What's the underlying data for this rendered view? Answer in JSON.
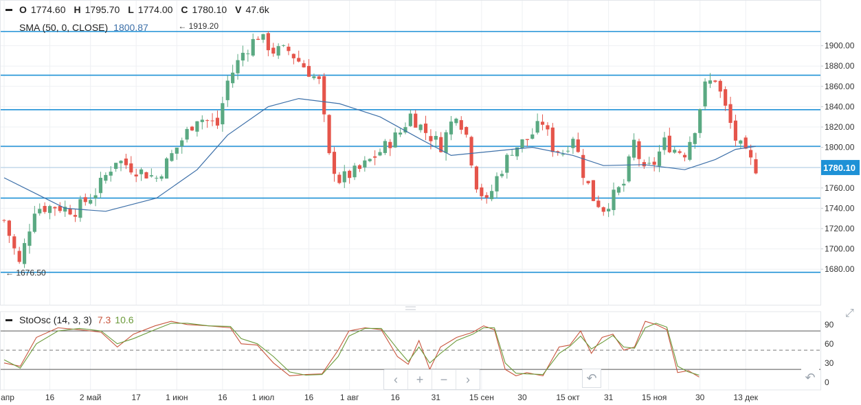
{
  "header": {
    "open_label": "O",
    "open": "1774.60",
    "high_label": "H",
    "high": "1795.70",
    "low_label": "L",
    "low": "1774.00",
    "close_label": "C",
    "close": "1780.10",
    "volume_label": "V",
    "volume": "47.6k"
  },
  "sma": {
    "label": "SMA (50, 0, CLOSE)",
    "value": "1800.87",
    "color": "#3c6fa8"
  },
  "stoch": {
    "label": "StoOsc (14, 3, 3)",
    "k_value": "7.3",
    "d_value": "10.6",
    "k_color": "#c8553d",
    "d_color": "#6b9a3a"
  },
  "colors": {
    "up": "#5aa982",
    "down": "#e5554b",
    "hline": "#1e91d6",
    "price_tag": "#1e91d6"
  },
  "nav": {
    "back": "‹",
    "zoom_in": "+",
    "zoom_out": "−",
    "forward": "›",
    "reset": "↶"
  },
  "icons": {
    "expand": "expand-icon",
    "reset": "undo-icon"
  },
  "chart_data": [
    {
      "type": "candlestick",
      "title": "",
      "y_ticks": [
        "1680.00",
        "1700.00",
        "1720.00",
        "1740.00",
        "1760.00",
        "1780.00",
        "1800.00",
        "1820.00",
        "1840.00",
        "1860.00",
        "1880.00",
        "1900.00"
      ],
      "ylim": [
        1645,
        1945
      ],
      "current_price": "1780.10",
      "horizontal_levels": [
        1677,
        1750,
        1801,
        1837,
        1871,
        1914
      ],
      "annotations": [
        {
          "text": "← 1919.20",
          "x": "1 июн",
          "y": 1919.2
        },
        {
          "text": "← 1676.50",
          "x": "1 апр",
          "y": 1676.5
        }
      ],
      "x_ticks": [
        "1 апр",
        "16",
        "2 май",
        "17",
        "1 июн",
        "16",
        "1 июл",
        "16",
        "1 авг",
        "16",
        "31",
        "15 сен",
        "30",
        "15 окт",
        "31",
        "15 ноя",
        "30",
        "13 дек"
      ],
      "close_series": [
        [
          0,
          1728
        ],
        [
          3,
          1685
        ],
        [
          6,
          1740
        ],
        [
          10,
          1742
        ],
        [
          14,
          1738
        ],
        [
          18,
          1756
        ],
        [
          22,
          1788
        ],
        [
          26,
          1778
        ],
        [
          30,
          1770
        ],
        [
          34,
          1800
        ],
        [
          38,
          1830
        ],
        [
          42,
          1822
        ],
        [
          44,
          1865
        ],
        [
          47,
          1893
        ],
        [
          50,
          1910
        ],
        [
          53,
          1895
        ],
        [
          56,
          1895
        ],
        [
          59,
          1880
        ],
        [
          62,
          1864
        ],
        [
          64,
          1790
        ],
        [
          66,
          1768
        ],
        [
          70,
          1778
        ],
        [
          74,
          1796
        ],
        [
          78,
          1815
        ],
        [
          80,
          1832
        ],
        [
          83,
          1815
        ],
        [
          86,
          1802
        ],
        [
          89,
          1835
        ],
        [
          91,
          1812
        ],
        [
          93,
          1764
        ],
        [
          95,
          1745
        ],
        [
          97,
          1770
        ],
        [
          100,
          1798
        ],
        [
          103,
          1808
        ],
        [
          106,
          1825
        ],
        [
          108,
          1800
        ],
        [
          110,
          1795
        ],
        [
          112,
          1812
        ],
        [
          114,
          1775
        ],
        [
          116,
          1750
        ],
        [
          118,
          1740
        ],
        [
          120,
          1752
        ],
        [
          122,
          1764
        ],
        [
          124,
          1805
        ],
        [
          126,
          1775
        ],
        [
          128,
          1785
        ],
        [
          130,
          1805
        ],
        [
          132,
          1798
        ],
        [
          134,
          1795
        ],
        [
          136,
          1820
        ],
        [
          138,
          1860
        ],
        [
          140,
          1868
        ],
        [
          142,
          1838
        ],
        [
          144,
          1808
        ],
        [
          146,
          1792
        ],
        [
          148,
          1780
        ]
      ],
      "sma_series": [
        [
          0,
          1770
        ],
        [
          6,
          1755
        ],
        [
          12,
          1740
        ],
        [
          20,
          1737
        ],
        [
          30,
          1750
        ],
        [
          38,
          1778
        ],
        [
          44,
          1812
        ],
        [
          52,
          1840
        ],
        [
          58,
          1848
        ],
        [
          66,
          1843
        ],
        [
          74,
          1830
        ],
        [
          82,
          1808
        ],
        [
          88,
          1792
        ],
        [
          96,
          1796
        ],
        [
          104,
          1800
        ],
        [
          112,
          1792
        ],
        [
          118,
          1782
        ],
        [
          126,
          1783
        ],
        [
          134,
          1778
        ],
        [
          140,
          1788
        ],
        [
          144,
          1798
        ],
        [
          148,
          1801
        ]
      ],
      "x_total": 149
    },
    {
      "type": "line",
      "title": "",
      "y_ticks": [
        "0",
        "30",
        "60",
        "90"
      ],
      "ylim": [
        -12,
        108
      ],
      "levels": [
        20,
        50,
        80
      ],
      "series": [
        {
          "name": "%K",
          "values": [
            [
              0,
              30
            ],
            [
              3,
              25
            ],
            [
              6,
              70
            ],
            [
              10,
              85
            ],
            [
              14,
              82
            ],
            [
              18,
              78
            ],
            [
              21,
              55
            ],
            [
              24,
              75
            ],
            [
              28,
              88
            ],
            [
              31,
              95
            ],
            [
              34,
              90
            ],
            [
              38,
              88
            ],
            [
              42,
              85
            ],
            [
              44,
              60
            ],
            [
              47,
              58
            ],
            [
              50,
              30
            ],
            [
              53,
              10
            ],
            [
              56,
              12
            ],
            [
              59,
              13
            ],
            [
              62,
              50
            ],
            [
              64,
              80
            ],
            [
              67,
              85
            ],
            [
              70,
              82
            ],
            [
              73,
              40
            ],
            [
              75,
              28
            ],
            [
              77,
              65
            ],
            [
              79,
              20
            ],
            [
              81,
              55
            ],
            [
              84,
              70
            ],
            [
              87,
              78
            ],
            [
              89,
              88
            ],
            [
              91,
              82
            ],
            [
              93,
              20
            ],
            [
              95,
              10
            ],
            [
              97,
              15
            ],
            [
              100,
              10
            ],
            [
              103,
              55
            ],
            [
              105,
              58
            ],
            [
              107,
              80
            ],
            [
              109,
              45
            ],
            [
              111,
              70
            ],
            [
              113,
              75
            ],
            [
              115,
              50
            ],
            [
              117,
              55
            ],
            [
              119,
              95
            ],
            [
              121,
              90
            ],
            [
              123,
              82
            ],
            [
              125,
              15
            ],
            [
              127,
              18
            ],
            [
              129,
              8
            ]
          ]
        },
        {
          "name": "%D",
          "values": [
            [
              0,
              35
            ],
            [
              3,
              22
            ],
            [
              6,
              60
            ],
            [
              10,
              80
            ],
            [
              14,
              84
            ],
            [
              18,
              80
            ],
            [
              21,
              60
            ],
            [
              24,
              68
            ],
            [
              28,
              82
            ],
            [
              31,
              92
            ],
            [
              34,
              92
            ],
            [
              38,
              88
            ],
            [
              42,
              87
            ],
            [
              44,
              68
            ],
            [
              47,
              60
            ],
            [
              50,
              40
            ],
            [
              53,
              16
            ],
            [
              56,
              11
            ],
            [
              59,
              12
            ],
            [
              62,
              40
            ],
            [
              64,
              72
            ],
            [
              67,
              84
            ],
            [
              70,
              84
            ],
            [
              73,
              52
            ],
            [
              75,
              32
            ],
            [
              77,
              55
            ],
            [
              79,
              30
            ],
            [
              81,
              45
            ],
            [
              84,
              65
            ],
            [
              87,
              75
            ],
            [
              89,
              85
            ],
            [
              91,
              85
            ],
            [
              93,
              30
            ],
            [
              95,
              14
            ],
            [
              97,
              13
            ],
            [
              100,
              12
            ],
            [
              103,
              45
            ],
            [
              105,
              56
            ],
            [
              107,
              72
            ],
            [
              109,
              52
            ],
            [
              111,
              62
            ],
            [
              113,
              73
            ],
            [
              115,
              55
            ],
            [
              117,
              53
            ],
            [
              119,
              85
            ],
            [
              121,
              92
            ],
            [
              123,
              86
            ],
            [
              125,
              25
            ],
            [
              127,
              16
            ],
            [
              129,
              11
            ]
          ]
        }
      ]
    }
  ]
}
